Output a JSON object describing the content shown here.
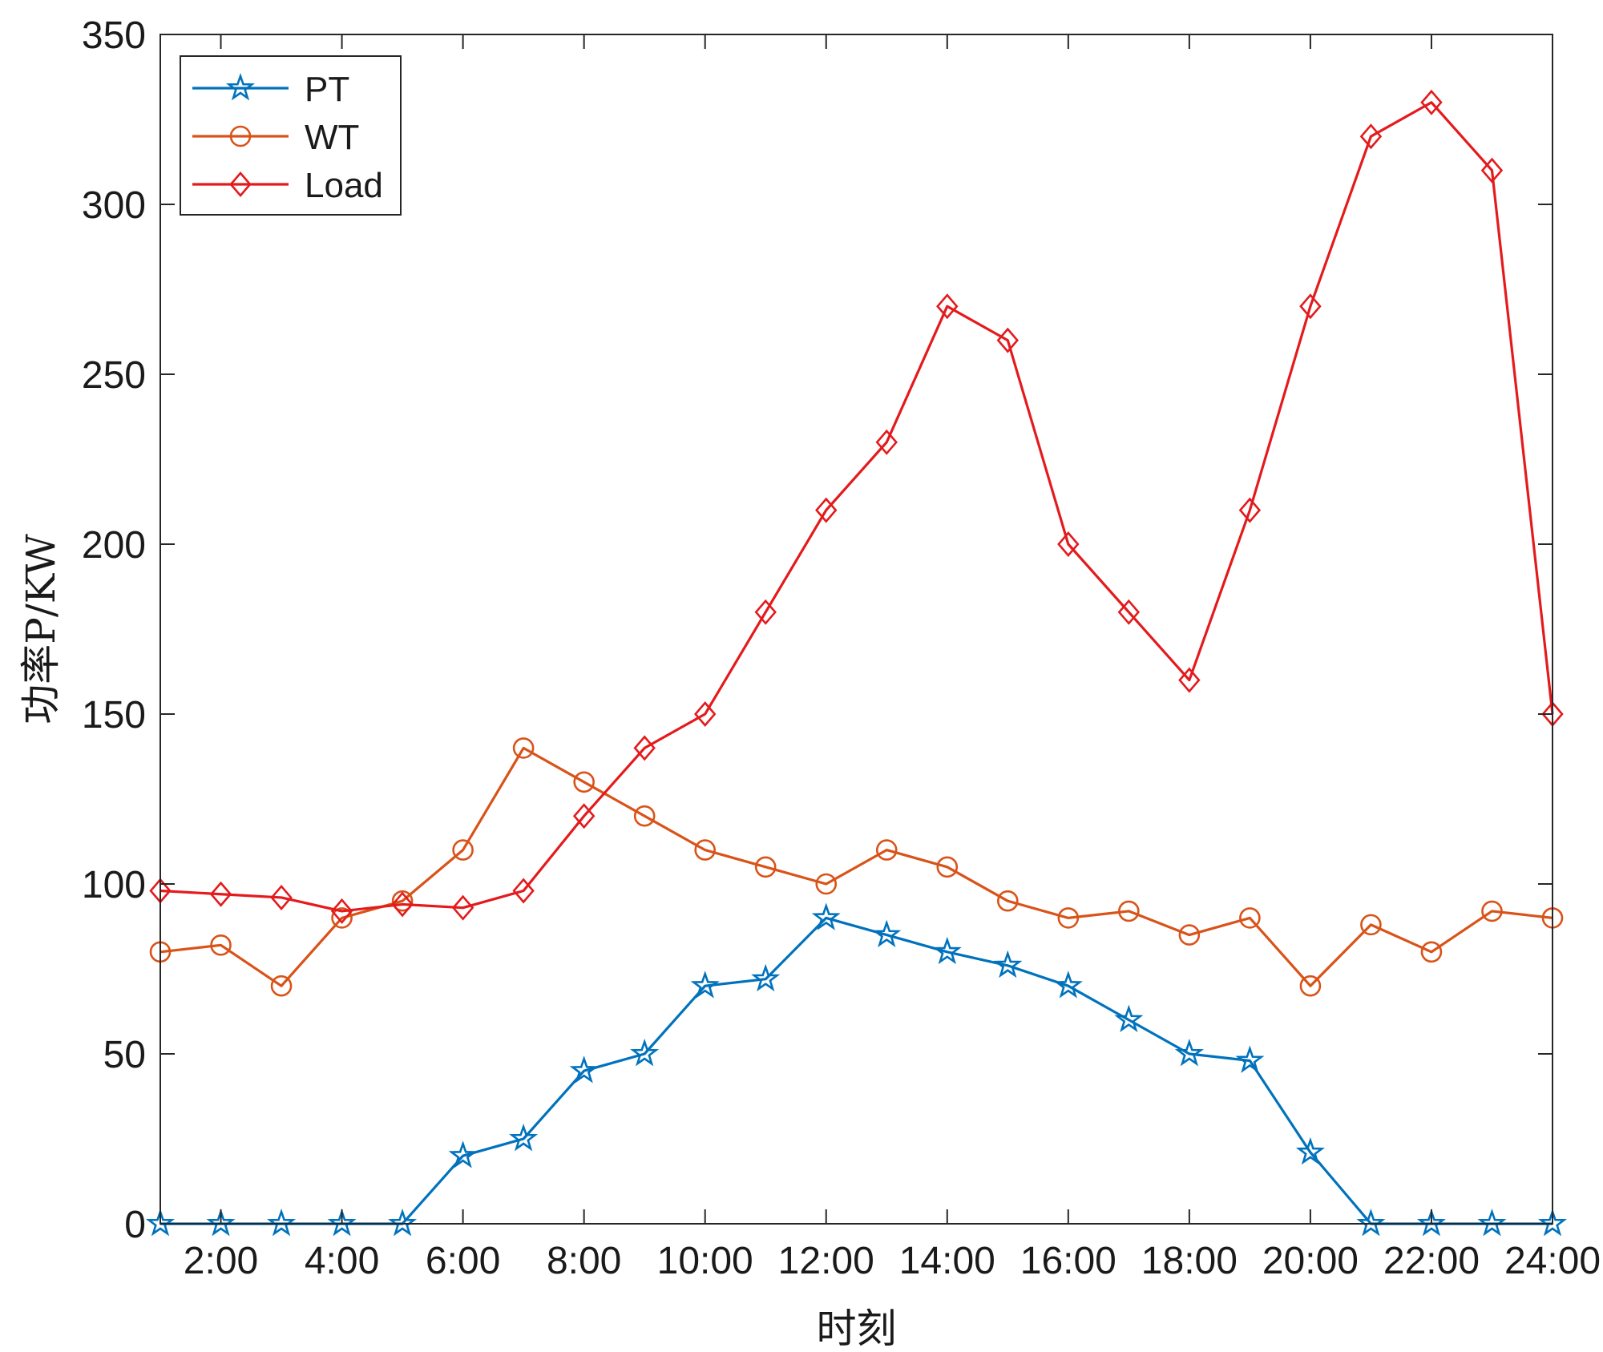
{
  "chart_data": {
    "type": "line",
    "title": "",
    "xlabel": "时刻",
    "ylabel": "功率P/KW",
    "xlim": [
      1,
      24
    ],
    "ylim": [
      0,
      350
    ],
    "x": [
      1,
      2,
      3,
      4,
      5,
      6,
      7,
      8,
      9,
      10,
      11,
      12,
      13,
      14,
      15,
      16,
      17,
      18,
      19,
      20,
      21,
      22,
      23,
      24
    ],
    "x_ticks": [
      2,
      4,
      6,
      8,
      10,
      12,
      14,
      16,
      18,
      20,
      22,
      24
    ],
    "x_tick_labels": [
      "2:00",
      "4:00",
      "6:00",
      "8:00",
      "10:00",
      "12:00",
      "14:00",
      "16:00",
      "18:00",
      "20:00",
      "22:00",
      "24:00"
    ],
    "y_ticks": [
      0,
      50,
      100,
      150,
      200,
      250,
      300,
      350
    ],
    "y_tick_labels": [
      "0",
      "50",
      "100",
      "150",
      "200",
      "250",
      "300",
      "350"
    ],
    "grid": false,
    "legend_position": "top-left",
    "series": [
      {
        "name": "PT",
        "color": "#0072BD",
        "marker": "star",
        "values": [
          0,
          0,
          0,
          0,
          0,
          20,
          25,
          45,
          50,
          70,
          72,
          90,
          85,
          80,
          76,
          70,
          60,
          50,
          48,
          21,
          0,
          0,
          0,
          0
        ]
      },
      {
        "name": "WT",
        "color": "#D95319",
        "marker": "circle",
        "values": [
          80,
          82,
          70,
          90,
          95,
          110,
          140,
          130,
          120,
          110,
          105,
          100,
          110,
          105,
          95,
          90,
          92,
          85,
          90,
          70,
          88,
          80,
          92,
          90
        ]
      },
      {
        "name": "Load",
        "color": "#E41A1C",
        "marker": "diamond",
        "values": [
          98,
          97,
          96,
          92,
          94,
          93,
          98,
          120,
          140,
          150,
          180,
          210,
          230,
          270,
          260,
          200,
          180,
          160,
          210,
          270,
          320,
          330,
          310,
          150
        ]
      }
    ]
  }
}
